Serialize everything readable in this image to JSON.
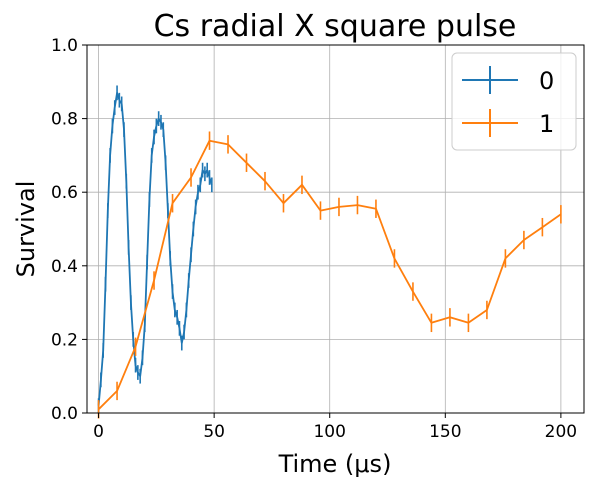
{
  "chart_data": {
    "type": "line",
    "title": "Cs radial X square pulse",
    "xlabel": "Time (μs)",
    "ylabel": "Survival",
    "xlim": [
      -5,
      210
    ],
    "ylim": [
      0,
      1
    ],
    "xticks": [
      0,
      50,
      100,
      150,
      200
    ],
    "yticks": [
      0.0,
      0.2,
      0.4,
      0.6,
      0.8,
      1.0
    ],
    "xtick_labels": [
      "0",
      "50",
      "100",
      "150",
      "200"
    ],
    "ytick_labels": [
      "0.0",
      "0.2",
      "0.4",
      "0.6",
      "0.8",
      "1.0"
    ],
    "grid": true,
    "legend_position": "top-right",
    "series": [
      {
        "name": "0",
        "color": "#1f77b4",
        "x": [
          0,
          1,
          2,
          3,
          4,
          5,
          6,
          7,
          8,
          9,
          10,
          11,
          12,
          13,
          14,
          15,
          16,
          17,
          18,
          19,
          20,
          21,
          22,
          23,
          24,
          25,
          26,
          27,
          28,
          29,
          30,
          31,
          32,
          33,
          34,
          35,
          36,
          37,
          38,
          39,
          40,
          41,
          42,
          43,
          44,
          45,
          46,
          47,
          48,
          49
        ],
        "y": [
          0.02,
          0.09,
          0.17,
          0.35,
          0.55,
          0.7,
          0.78,
          0.83,
          0.87,
          0.85,
          0.84,
          0.77,
          0.63,
          0.45,
          0.3,
          0.2,
          0.13,
          0.11,
          0.1,
          0.15,
          0.24,
          0.41,
          0.58,
          0.7,
          0.75,
          0.78,
          0.8,
          0.79,
          0.77,
          0.68,
          0.55,
          0.42,
          0.33,
          0.28,
          0.26,
          0.23,
          0.19,
          0.22,
          0.28,
          0.36,
          0.43,
          0.5,
          0.56,
          0.6,
          0.62,
          0.66,
          0.65,
          0.66,
          0.64,
          0.62
        ],
        "err": 0.02
      },
      {
        "name": "1",
        "color": "#ff7f0e",
        "x": [
          0,
          8,
          16,
          24,
          32,
          40,
          48,
          56,
          64,
          72,
          80,
          88,
          96,
          104,
          112,
          120,
          128,
          136,
          144,
          152,
          160,
          168,
          176,
          184,
          192,
          200
        ],
        "y": [
          0.01,
          0.06,
          0.18,
          0.36,
          0.57,
          0.64,
          0.74,
          0.73,
          0.68,
          0.63,
          0.57,
          0.62,
          0.55,
          0.56,
          0.565,
          0.555,
          0.42,
          0.33,
          0.245,
          0.26,
          0.245,
          0.28,
          0.42,
          0.47,
          0.505,
          0.54
        ],
        "err": 0.025
      }
    ]
  }
}
